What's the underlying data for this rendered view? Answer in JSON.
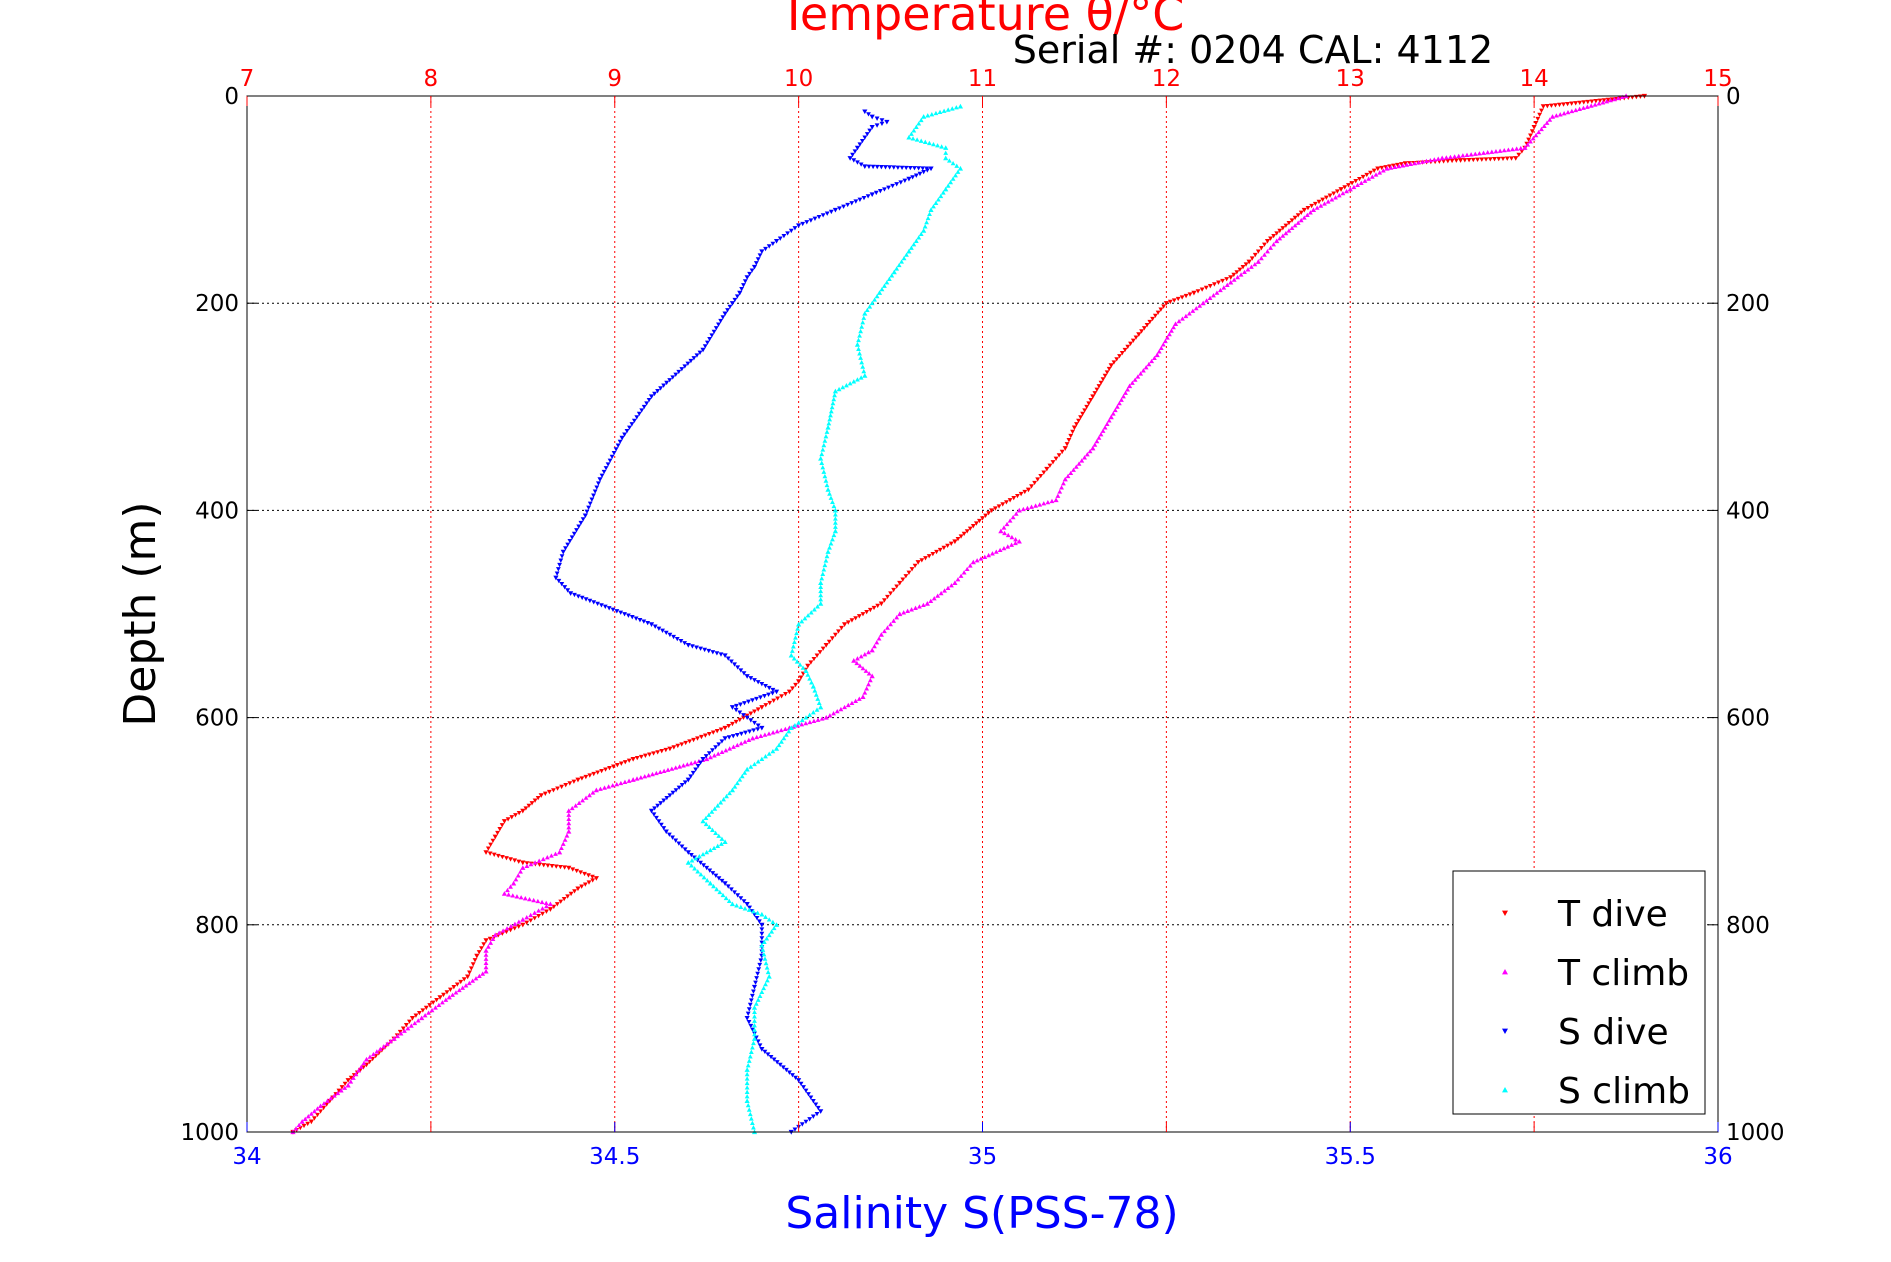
{
  "chart_data": {
    "type": "scatter",
    "title": "Temperature θ/°C",
    "subtitle": "Serial #: 0204  CAL: 4112",
    "ylabel": "Depth (m)",
    "xlabel": "Salinity S(PSS-78)",
    "ylim": [
      1000,
      0
    ],
    "y_ticks": [
      0,
      200,
      400,
      600,
      800,
      1000
    ],
    "x_temperature": {
      "lim": [
        7,
        15
      ],
      "ticks": [
        7,
        8,
        9,
        10,
        11,
        12,
        13,
        14,
        15
      ],
      "color": "#ff0000"
    },
    "x_salinity": {
      "lim": [
        34,
        36
      ],
      "ticks": [
        34,
        34.5,
        35,
        35.5,
        36
      ],
      "color": "#0000ff"
    },
    "grid": true,
    "legend_position": "bottom-right",
    "series": [
      {
        "name": "T dive",
        "axis": "temperature",
        "color": "#ff0000",
        "marker": "triangle-down",
        "points": [
          [
            14.6,
            0
          ],
          [
            14.05,
            10
          ],
          [
            14.0,
            30
          ],
          [
            13.95,
            50
          ],
          [
            13.9,
            60
          ],
          [
            13.6,
            62
          ],
          [
            13.3,
            65
          ],
          [
            13.15,
            70
          ],
          [
            12.95,
            90
          ],
          [
            12.75,
            110
          ],
          [
            12.55,
            140
          ],
          [
            12.45,
            160
          ],
          [
            12.35,
            175
          ],
          [
            12.15,
            190
          ],
          [
            12.0,
            200
          ],
          [
            11.85,
            230
          ],
          [
            11.7,
            260
          ],
          [
            11.6,
            290
          ],
          [
            11.5,
            320
          ],
          [
            11.45,
            340
          ],
          [
            11.35,
            360
          ],
          [
            11.25,
            380
          ],
          [
            11.05,
            400
          ],
          [
            10.85,
            430
          ],
          [
            10.65,
            450
          ],
          [
            10.55,
            470
          ],
          [
            10.45,
            490
          ],
          [
            10.25,
            510
          ],
          [
            10.15,
            530
          ],
          [
            10.05,
            550
          ],
          [
            10.0,
            565
          ],
          [
            9.95,
            575
          ],
          [
            9.8,
            590
          ],
          [
            9.6,
            610
          ],
          [
            9.3,
            630
          ],
          [
            9.1,
            640
          ],
          [
            8.8,
            660
          ],
          [
            8.6,
            675
          ],
          [
            8.5,
            690
          ],
          [
            8.4,
            700
          ],
          [
            8.35,
            715
          ],
          [
            8.3,
            730
          ],
          [
            8.5,
            740
          ],
          [
            8.75,
            745
          ],
          [
            8.9,
            755
          ],
          [
            8.8,
            765
          ],
          [
            8.65,
            785
          ],
          [
            8.5,
            800
          ],
          [
            8.3,
            815
          ],
          [
            8.25,
            830
          ],
          [
            8.2,
            850
          ],
          [
            8.05,
            870
          ],
          [
            7.9,
            890
          ],
          [
            7.8,
            910
          ],
          [
            7.65,
            935
          ],
          [
            7.55,
            950
          ],
          [
            7.45,
            970
          ],
          [
            7.35,
            990
          ],
          [
            7.25,
            1000
          ]
        ]
      },
      {
        "name": "T climb",
        "axis": "temperature",
        "color": "#ff00ff",
        "marker": "triangle-up",
        "points": [
          [
            14.5,
            0
          ],
          [
            14.1,
            20
          ],
          [
            13.95,
            50
          ],
          [
            13.5,
            60
          ],
          [
            13.2,
            70
          ],
          [
            13.0,
            90
          ],
          [
            12.8,
            110
          ],
          [
            12.6,
            140
          ],
          [
            12.5,
            160
          ],
          [
            12.35,
            180
          ],
          [
            12.2,
            200
          ],
          [
            12.05,
            220
          ],
          [
            11.95,
            250
          ],
          [
            11.8,
            280
          ],
          [
            11.7,
            310
          ],
          [
            11.6,
            340
          ],
          [
            11.45,
            370
          ],
          [
            11.4,
            390
          ],
          [
            11.2,
            400
          ],
          [
            11.1,
            420
          ],
          [
            11.2,
            430
          ],
          [
            10.95,
            450
          ],
          [
            10.85,
            470
          ],
          [
            10.7,
            490
          ],
          [
            10.55,
            500
          ],
          [
            10.45,
            520
          ],
          [
            10.4,
            535
          ],
          [
            10.3,
            545
          ],
          [
            10.4,
            560
          ],
          [
            10.35,
            580
          ],
          [
            10.15,
            600
          ],
          [
            9.95,
            610
          ],
          [
            9.75,
            620
          ],
          [
            9.5,
            640
          ],
          [
            9.1,
            660
          ],
          [
            8.9,
            670
          ],
          [
            8.75,
            690
          ],
          [
            8.75,
            710
          ],
          [
            8.7,
            730
          ],
          [
            8.5,
            745
          ],
          [
            8.45,
            760
          ],
          [
            8.4,
            770
          ],
          [
            8.65,
            780
          ],
          [
            8.5,
            795
          ],
          [
            8.35,
            810
          ],
          [
            8.3,
            825
          ],
          [
            8.3,
            845
          ],
          [
            8.1,
            870
          ],
          [
            7.95,
            890
          ],
          [
            7.8,
            910
          ],
          [
            7.65,
            930
          ],
          [
            7.55,
            955
          ],
          [
            7.4,
            975
          ],
          [
            7.3,
            990
          ],
          [
            7.25,
            1000
          ]
        ]
      },
      {
        "name": "S dive",
        "axis": "salinity",
        "color": "#0000ff",
        "marker": "triangle-down",
        "points": [
          [
            34.84,
            15
          ],
          [
            34.85,
            20
          ],
          [
            34.87,
            25
          ],
          [
            34.85,
            30
          ],
          [
            34.83,
            50
          ],
          [
            34.82,
            60
          ],
          [
            34.84,
            68
          ],
          [
            34.93,
            70
          ],
          [
            34.9,
            80
          ],
          [
            34.85,
            95
          ],
          [
            34.8,
            110
          ],
          [
            34.75,
            125
          ],
          [
            34.72,
            140
          ],
          [
            34.7,
            150
          ],
          [
            34.69,
            165
          ],
          [
            34.68,
            175
          ],
          [
            34.67,
            190
          ],
          [
            34.66,
            200
          ],
          [
            34.65,
            210
          ],
          [
            34.62,
            245
          ],
          [
            34.55,
            290
          ],
          [
            34.51,
            330
          ],
          [
            34.48,
            370
          ],
          [
            34.46,
            405
          ],
          [
            34.43,
            440
          ],
          [
            34.42,
            465
          ],
          [
            34.44,
            480
          ],
          [
            34.55,
            510
          ],
          [
            34.6,
            530
          ],
          [
            34.65,
            540
          ],
          [
            34.68,
            560
          ],
          [
            34.72,
            575
          ],
          [
            34.66,
            590
          ],
          [
            34.7,
            610
          ],
          [
            34.65,
            620
          ],
          [
            34.62,
            640
          ],
          [
            34.6,
            660
          ],
          [
            34.55,
            690
          ],
          [
            34.57,
            710
          ],
          [
            34.6,
            730
          ],
          [
            34.65,
            760
          ],
          [
            34.68,
            780
          ],
          [
            34.7,
            800
          ],
          [
            34.7,
            830
          ],
          [
            34.69,
            860
          ],
          [
            34.68,
            890
          ],
          [
            34.7,
            920
          ],
          [
            34.75,
            950
          ],
          [
            34.78,
            980
          ],
          [
            34.74,
            1000
          ]
        ]
      },
      {
        "name": "S climb",
        "axis": "salinity",
        "color": "#00ffff",
        "marker": "triangle-up",
        "points": [
          [
            34.97,
            10
          ],
          [
            34.92,
            20
          ],
          [
            34.9,
            40
          ],
          [
            34.95,
            50
          ],
          [
            34.95,
            60
          ],
          [
            34.97,
            70
          ],
          [
            34.95,
            90
          ],
          [
            34.93,
            110
          ],
          [
            34.92,
            130
          ],
          [
            34.9,
            150
          ],
          [
            34.88,
            170
          ],
          [
            34.86,
            190
          ],
          [
            34.84,
            210
          ],
          [
            34.83,
            240
          ],
          [
            34.84,
            270
          ],
          [
            34.8,
            285
          ],
          [
            34.79,
            320
          ],
          [
            34.78,
            350
          ],
          [
            34.79,
            380
          ],
          [
            34.8,
            400
          ],
          [
            34.8,
            420
          ],
          [
            34.79,
            440
          ],
          [
            34.78,
            470
          ],
          [
            34.78,
            490
          ],
          [
            34.75,
            510
          ],
          [
            34.74,
            540
          ],
          [
            34.76,
            555
          ],
          [
            34.77,
            570
          ],
          [
            34.78,
            590
          ],
          [
            34.74,
            610
          ],
          [
            34.72,
            630
          ],
          [
            34.68,
            650
          ],
          [
            34.66,
            670
          ],
          [
            34.62,
            700
          ],
          [
            34.65,
            720
          ],
          [
            34.6,
            740
          ],
          [
            34.63,
            760
          ],
          [
            34.66,
            780
          ],
          [
            34.7,
            790
          ],
          [
            34.72,
            800
          ],
          [
            34.7,
            820
          ],
          [
            34.71,
            850
          ],
          [
            34.69,
            880
          ],
          [
            34.69,
            910
          ],
          [
            34.68,
            940
          ],
          [
            34.68,
            970
          ],
          [
            34.69,
            1000
          ]
        ]
      }
    ]
  }
}
